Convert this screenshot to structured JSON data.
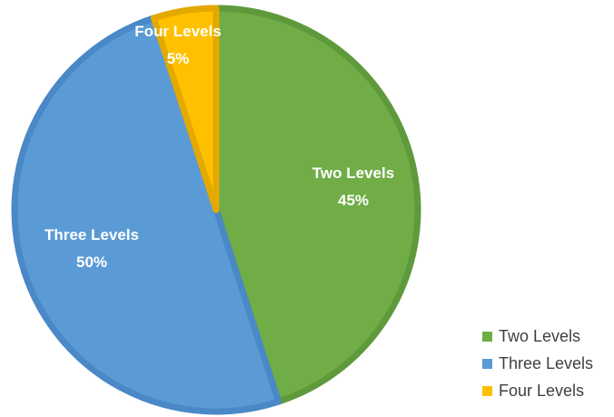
{
  "chart_data": {
    "type": "pie",
    "categories": [
      "Two Levels",
      "Three Levels",
      "Four Levels"
    ],
    "values": [
      45,
      50,
      5
    ],
    "labels": [
      "45%",
      "50%",
      "5%"
    ],
    "colors": [
      "#70ad47",
      "#5b9bd5",
      "#ffc000"
    ],
    "edge_colors": [
      "#5e9a3c",
      "#4a88c7",
      "#e3a900"
    ],
    "title": "",
    "legend_position": "bottom-right",
    "start": "top, clockwise"
  },
  "legend": {
    "items": [
      {
        "label": "Two Levels",
        "color": "#70ad47"
      },
      {
        "label": "Three Levels",
        "color": "#5b9bd5"
      },
      {
        "label": "Four Levels",
        "color": "#ffc000"
      }
    ]
  }
}
